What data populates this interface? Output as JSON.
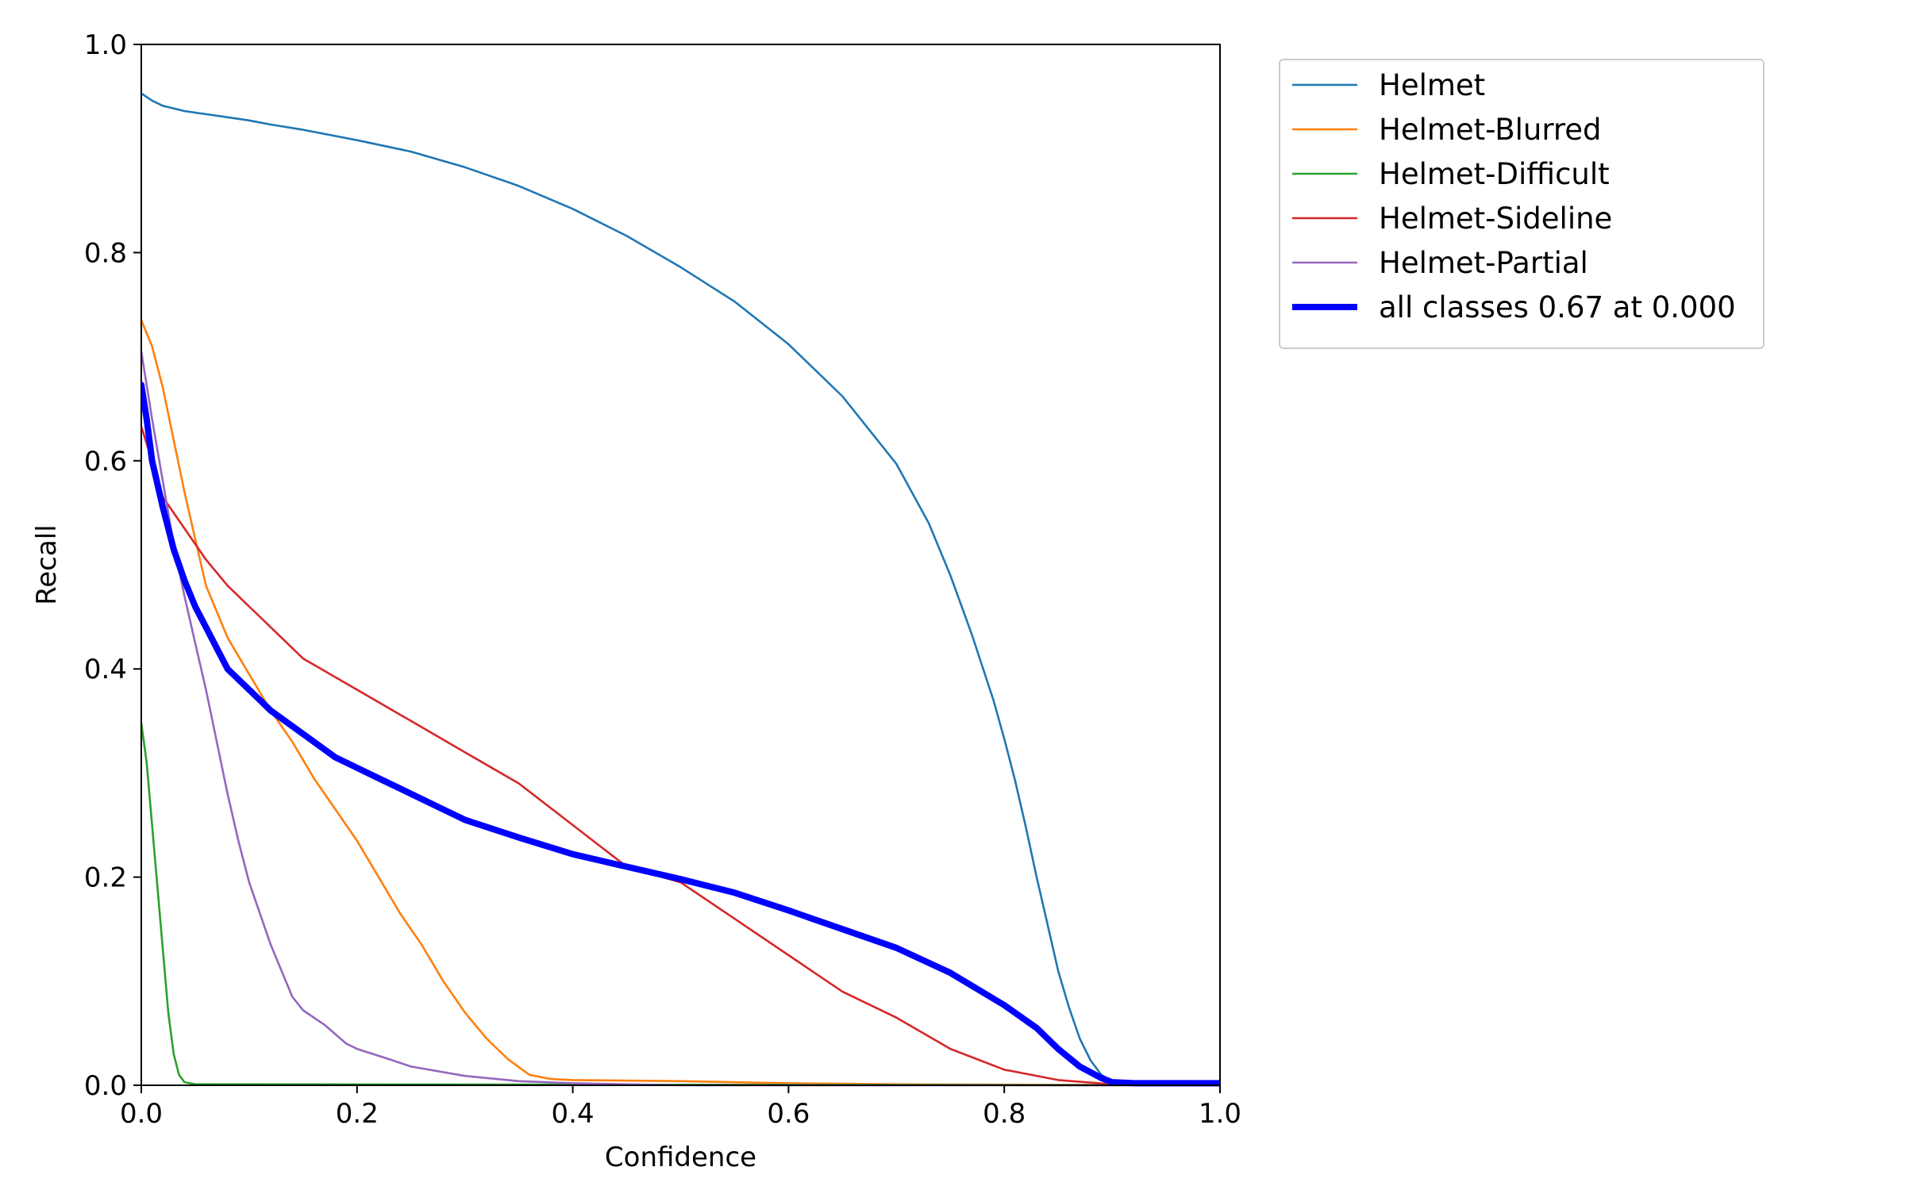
{
  "chart_data": {
    "type": "line",
    "title": "",
    "xlabel": "Confidence",
    "ylabel": "Recall",
    "xlim": [
      0,
      1
    ],
    "ylim": [
      0,
      1
    ],
    "xticks": [
      "0.0",
      "0.2",
      "0.4",
      "0.6",
      "0.8",
      "1.0"
    ],
    "yticks": [
      "0.0",
      "0.2",
      "0.4",
      "0.6",
      "0.8",
      "1.0"
    ],
    "grid": false,
    "legend_position": "outside-top-right",
    "series": [
      {
        "name": "Helmet",
        "color": "#1f77b4",
        "width": "thin",
        "points": [
          [
            0,
            0.953
          ],
          [
            0.01,
            0.946
          ],
          [
            0.02,
            0.941
          ],
          [
            0.04,
            0.936
          ],
          [
            0.06,
            0.933
          ],
          [
            0.08,
            0.93
          ],
          [
            0.1,
            0.927
          ],
          [
            0.12,
            0.923
          ],
          [
            0.15,
            0.918
          ],
          [
            0.2,
            0.908
          ],
          [
            0.25,
            0.897
          ],
          [
            0.3,
            0.882
          ],
          [
            0.35,
            0.864
          ],
          [
            0.4,
            0.842
          ],
          [
            0.45,
            0.816
          ],
          [
            0.5,
            0.786
          ],
          [
            0.55,
            0.753
          ],
          [
            0.6,
            0.712
          ],
          [
            0.65,
            0.662
          ],
          [
            0.7,
            0.597
          ],
          [
            0.73,
            0.54
          ],
          [
            0.75,
            0.49
          ],
          [
            0.77,
            0.433
          ],
          [
            0.79,
            0.37
          ],
          [
            0.8,
            0.333
          ],
          [
            0.81,
            0.293
          ],
          [
            0.82,
            0.248
          ],
          [
            0.83,
            0.2
          ],
          [
            0.84,
            0.155
          ],
          [
            0.85,
            0.11
          ],
          [
            0.86,
            0.075
          ],
          [
            0.87,
            0.045
          ],
          [
            0.88,
            0.024
          ],
          [
            0.89,
            0.01
          ],
          [
            0.9,
            0.004
          ],
          [
            0.92,
            0.002
          ],
          [
            1.0,
            0.002
          ]
        ]
      },
      {
        "name": "Helmet-Blurred",
        "color": "#ff7f0e",
        "width": "thin",
        "points": [
          [
            0,
            0.735
          ],
          [
            0.01,
            0.71
          ],
          [
            0.02,
            0.67
          ],
          [
            0.03,
            0.62
          ],
          [
            0.04,
            0.57
          ],
          [
            0.05,
            0.525
          ],
          [
            0.06,
            0.48
          ],
          [
            0.08,
            0.43
          ],
          [
            0.1,
            0.395
          ],
          [
            0.12,
            0.36
          ],
          [
            0.14,
            0.33
          ],
          [
            0.16,
            0.295
          ],
          [
            0.18,
            0.265
          ],
          [
            0.2,
            0.235
          ],
          [
            0.22,
            0.2
          ],
          [
            0.24,
            0.165
          ],
          [
            0.26,
            0.135
          ],
          [
            0.28,
            0.1
          ],
          [
            0.3,
            0.07
          ],
          [
            0.32,
            0.045
          ],
          [
            0.34,
            0.025
          ],
          [
            0.36,
            0.01
          ],
          [
            0.38,
            0.006
          ],
          [
            0.4,
            0.005
          ],
          [
            0.5,
            0.004
          ],
          [
            0.6,
            0.002
          ],
          [
            0.7,
            0.001
          ],
          [
            1.0,
            0.0
          ]
        ]
      },
      {
        "name": "Helmet-Difficult",
        "color": "#2ca02c",
        "width": "thin",
        "points": [
          [
            0,
            0.348
          ],
          [
            0.005,
            0.31
          ],
          [
            0.01,
            0.25
          ],
          [
            0.015,
            0.19
          ],
          [
            0.02,
            0.13
          ],
          [
            0.025,
            0.07
          ],
          [
            0.03,
            0.03
          ],
          [
            0.035,
            0.01
          ],
          [
            0.04,
            0.003
          ],
          [
            0.05,
            0.001
          ],
          [
            1.0,
            0.0
          ]
        ]
      },
      {
        "name": "Helmet-Sideline",
        "color": "#d62728",
        "width": "thin",
        "points": [
          [
            0,
            0.633
          ],
          [
            0.01,
            0.6
          ],
          [
            0.02,
            0.565
          ],
          [
            0.04,
            0.535
          ],
          [
            0.06,
            0.505
          ],
          [
            0.08,
            0.48
          ],
          [
            0.1,
            0.46
          ],
          [
            0.12,
            0.44
          ],
          [
            0.15,
            0.41
          ],
          [
            0.2,
            0.38
          ],
          [
            0.25,
            0.35
          ],
          [
            0.3,
            0.32
          ],
          [
            0.35,
            0.29
          ],
          [
            0.4,
            0.25
          ],
          [
            0.45,
            0.21
          ],
          [
            0.5,
            0.195
          ],
          [
            0.55,
            0.16
          ],
          [
            0.6,
            0.125
          ],
          [
            0.65,
            0.09
          ],
          [
            0.7,
            0.065
          ],
          [
            0.75,
            0.035
          ],
          [
            0.8,
            0.015
          ],
          [
            0.85,
            0.005
          ],
          [
            0.9,
            0.001
          ],
          [
            1.0,
            0.0
          ]
        ]
      },
      {
        "name": "Helmet-Partial",
        "color": "#9467bd",
        "width": "thin",
        "points": [
          [
            0,
            0.705
          ],
          [
            0.01,
            0.64
          ],
          [
            0.02,
            0.58
          ],
          [
            0.03,
            0.52
          ],
          [
            0.04,
            0.47
          ],
          [
            0.05,
            0.425
          ],
          [
            0.06,
            0.38
          ],
          [
            0.07,
            0.33
          ],
          [
            0.08,
            0.28
          ],
          [
            0.09,
            0.235
          ],
          [
            0.1,
            0.195
          ],
          [
            0.11,
            0.165
          ],
          [
            0.12,
            0.135
          ],
          [
            0.13,
            0.11
          ],
          [
            0.14,
            0.085
          ],
          [
            0.15,
            0.072
          ],
          [
            0.17,
            0.058
          ],
          [
            0.19,
            0.04
          ],
          [
            0.2,
            0.035
          ],
          [
            0.23,
            0.025
          ],
          [
            0.25,
            0.018
          ],
          [
            0.3,
            0.009
          ],
          [
            0.35,
            0.004
          ],
          [
            0.4,
            0.002
          ],
          [
            0.5,
            0.0
          ],
          [
            1.0,
            0.0
          ]
        ]
      },
      {
        "name": "all classes 0.67 at 0.000",
        "color": "#0000ff",
        "width": "thick",
        "points": [
          [
            0,
            0.673
          ],
          [
            0.005,
            0.64
          ],
          [
            0.01,
            0.6
          ],
          [
            0.02,
            0.555
          ],
          [
            0.03,
            0.515
          ],
          [
            0.04,
            0.485
          ],
          [
            0.05,
            0.46
          ],
          [
            0.06,
            0.44
          ],
          [
            0.07,
            0.42
          ],
          [
            0.08,
            0.4
          ],
          [
            0.1,
            0.38
          ],
          [
            0.12,
            0.36
          ],
          [
            0.14,
            0.345
          ],
          [
            0.16,
            0.33
          ],
          [
            0.18,
            0.315
          ],
          [
            0.2,
            0.305
          ],
          [
            0.22,
            0.295
          ],
          [
            0.25,
            0.28
          ],
          [
            0.28,
            0.265
          ],
          [
            0.3,
            0.255
          ],
          [
            0.35,
            0.238
          ],
          [
            0.4,
            0.222
          ],
          [
            0.45,
            0.21
          ],
          [
            0.5,
            0.198
          ],
          [
            0.55,
            0.185
          ],
          [
            0.6,
            0.168
          ],
          [
            0.65,
            0.15
          ],
          [
            0.7,
            0.132
          ],
          [
            0.75,
            0.108
          ],
          [
            0.8,
            0.077
          ],
          [
            0.83,
            0.055
          ],
          [
            0.85,
            0.035
          ],
          [
            0.87,
            0.018
          ],
          [
            0.89,
            0.007
          ],
          [
            0.9,
            0.003
          ],
          [
            0.92,
            0.002
          ],
          [
            1.0,
            0.002
          ]
        ]
      }
    ]
  }
}
